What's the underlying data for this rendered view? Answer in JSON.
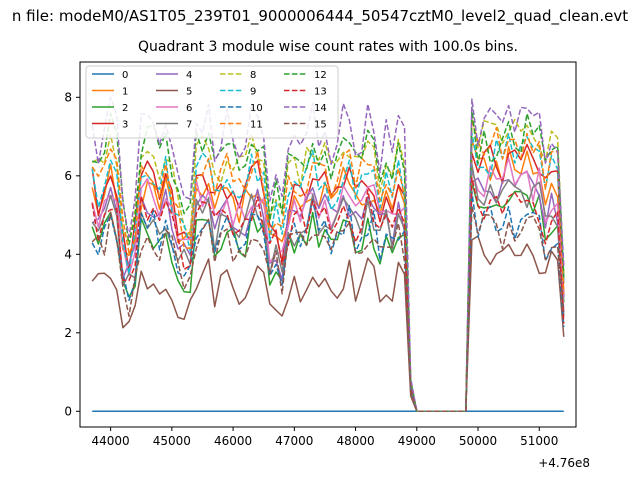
{
  "figure": {
    "suptitle": "n file: modeM0/AS1T05_239T01_9000006444_50547cztM0_level2_quad_clean.evt"
  },
  "chart_data": {
    "type": "line",
    "title": "Quadrant 3 module wise count rates with 100.0s bins.",
    "xlabel": "",
    "ylabel": "",
    "x_offset_label": "+4.76e8",
    "xlim": [
      43500,
      51600
    ],
    "ylim": [
      -0.4,
      8.9
    ],
    "xticks": [
      44000,
      45000,
      46000,
      47000,
      48000,
      49000,
      50000,
      51000
    ],
    "yticks": [
      0,
      2,
      4,
      6,
      8
    ],
    "grid": false,
    "legend_placement": "top-left",
    "legend_columns": 4,
    "x": {
      "start": 43700,
      "step": 100,
      "count": 78
    },
    "series": [
      {
        "name": "0",
        "color": "#1f77b4",
        "dash": false,
        "flat": 0
      },
      {
        "name": "1",
        "color": "#ff7f0e",
        "dash": false,
        "level": 5.4,
        "post": 6.6
      },
      {
        "name": "2",
        "color": "#2ca02c",
        "dash": false,
        "level": 4.4,
        "post": 5.6
      },
      {
        "name": "3",
        "color": "#d62728",
        "dash": false,
        "level": 5.6,
        "post": 6.8
      },
      {
        "name": "4",
        "color": "#9467bd",
        "dash": false,
        "level": 5.0,
        "post": 6.0
      },
      {
        "name": "5",
        "color": "#8c564b",
        "dash": false,
        "level": 3.3,
        "post": 4.4
      },
      {
        "name": "6",
        "color": "#e377c2",
        "dash": false,
        "level": 5.2,
        "post": 6.2
      },
      {
        "name": "7",
        "color": "#7f7f7f",
        "dash": false,
        "level": 4.8,
        "post": 5.8
      },
      {
        "name": "8",
        "color": "#bcbd22",
        "dash": true,
        "level": 6.3,
        "post": 7.4
      },
      {
        "name": "9",
        "color": "#17becf",
        "dash": true,
        "level": 5.8,
        "post": 6.8
      },
      {
        "name": "10",
        "color": "#1f77b4",
        "dash": true,
        "level": 4.6,
        "post": 5.2
      },
      {
        "name": "11",
        "color": "#ff7f0e",
        "dash": true,
        "level": 6.0,
        "post": 7.1
      },
      {
        "name": "12",
        "color": "#2ca02c",
        "dash": true,
        "level": 6.6,
        "post": 7.2
      },
      {
        "name": "13",
        "color": "#d62728",
        "dash": true,
        "level": 4.9,
        "post": 5.6
      },
      {
        "name": "14",
        "color": "#9467bd",
        "dash": true,
        "level": 7.0,
        "post": 7.8
      },
      {
        "name": "15",
        "color": "#8c564b",
        "dash": true,
        "level": 4.3,
        "post": 5.0
      }
    ]
  }
}
